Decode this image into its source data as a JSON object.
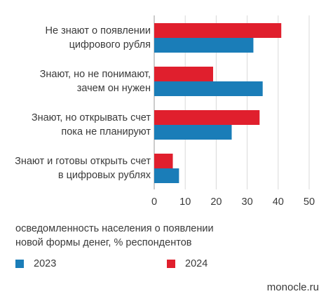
{
  "chart_data": {
    "type": "bar",
    "orientation": "horizontal",
    "categories": [
      [
        "Не знают о появлении",
        "цифрового рубля"
      ],
      [
        "Знают, но не понимают,",
        "зачем он нужен"
      ],
      [
        "Знают, но открывать счет",
        "пока не планируют"
      ],
      [
        "Знают и готовы открыть счет",
        "в цифровых рублях"
      ]
    ],
    "series": [
      {
        "name": "2024",
        "color": "#e01f2d",
        "values": [
          41,
          19,
          34,
          6
        ]
      },
      {
        "name": "2023",
        "color": "#1a7db8",
        "values": [
          32,
          35,
          25,
          8
        ]
      }
    ],
    "xlim": [
      0,
      50
    ],
    "xticks": [
      "0",
      "10",
      "20",
      "30",
      "40",
      "50"
    ],
    "grid": true,
    "note": [
      "осведомленность населения о появлении",
      "новой формы денег, % респондентов"
    ],
    "legend": [
      {
        "label": "2023",
        "color": "#1a7db8"
      },
      {
        "label": "2024",
        "color": "#e01f2d"
      }
    ],
    "legend_position": "bottom"
  },
  "source": "monocle.ru"
}
